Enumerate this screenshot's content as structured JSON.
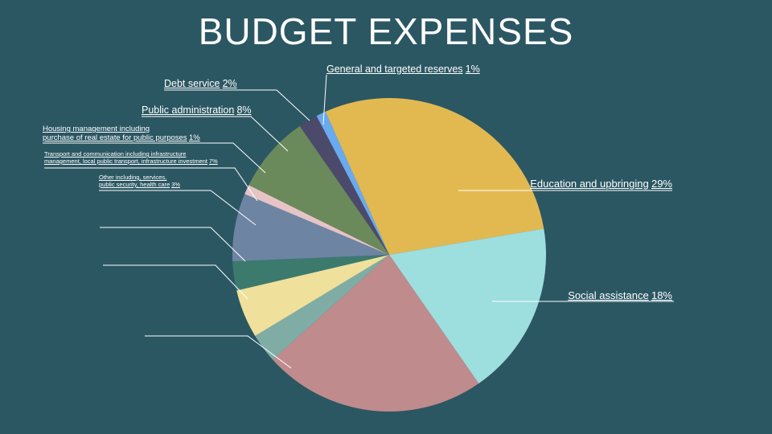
{
  "chart_data": {
    "type": "pie",
    "title": "BUDGET EXPENSES",
    "categories": [
      "Education and upbringing",
      "Social assistance",
      null,
      null,
      null,
      "Other including, services,\npublic security, health care",
      "Transport and communication including infrastructure\nmanagement, local public transport, infrastructure investment",
      "Housing management including\npurchase of real estate for public purposes",
      "Public administration",
      "Debt service",
      "General and targeted reserves"
    ],
    "values": [
      29,
      18,
      23,
      3,
      5,
      3,
      7,
      1,
      8,
      2,
      1
    ],
    "value_labels": [
      "29%",
      "18%",
      null,
      null,
      null,
      "3%",
      "7%",
      "1%",
      "8%",
      "2%",
      "1%"
    ],
    "colors": [
      "#e2b951",
      "#9ddedf",
      "#c08b8d",
      "#7fada5",
      "#efe09b",
      "#3c7a6e",
      "#6d84a3",
      "#e6c4c6",
      "#6b8a5b",
      "#4c4a6b",
      "#6aaaf0"
    ]
  }
}
